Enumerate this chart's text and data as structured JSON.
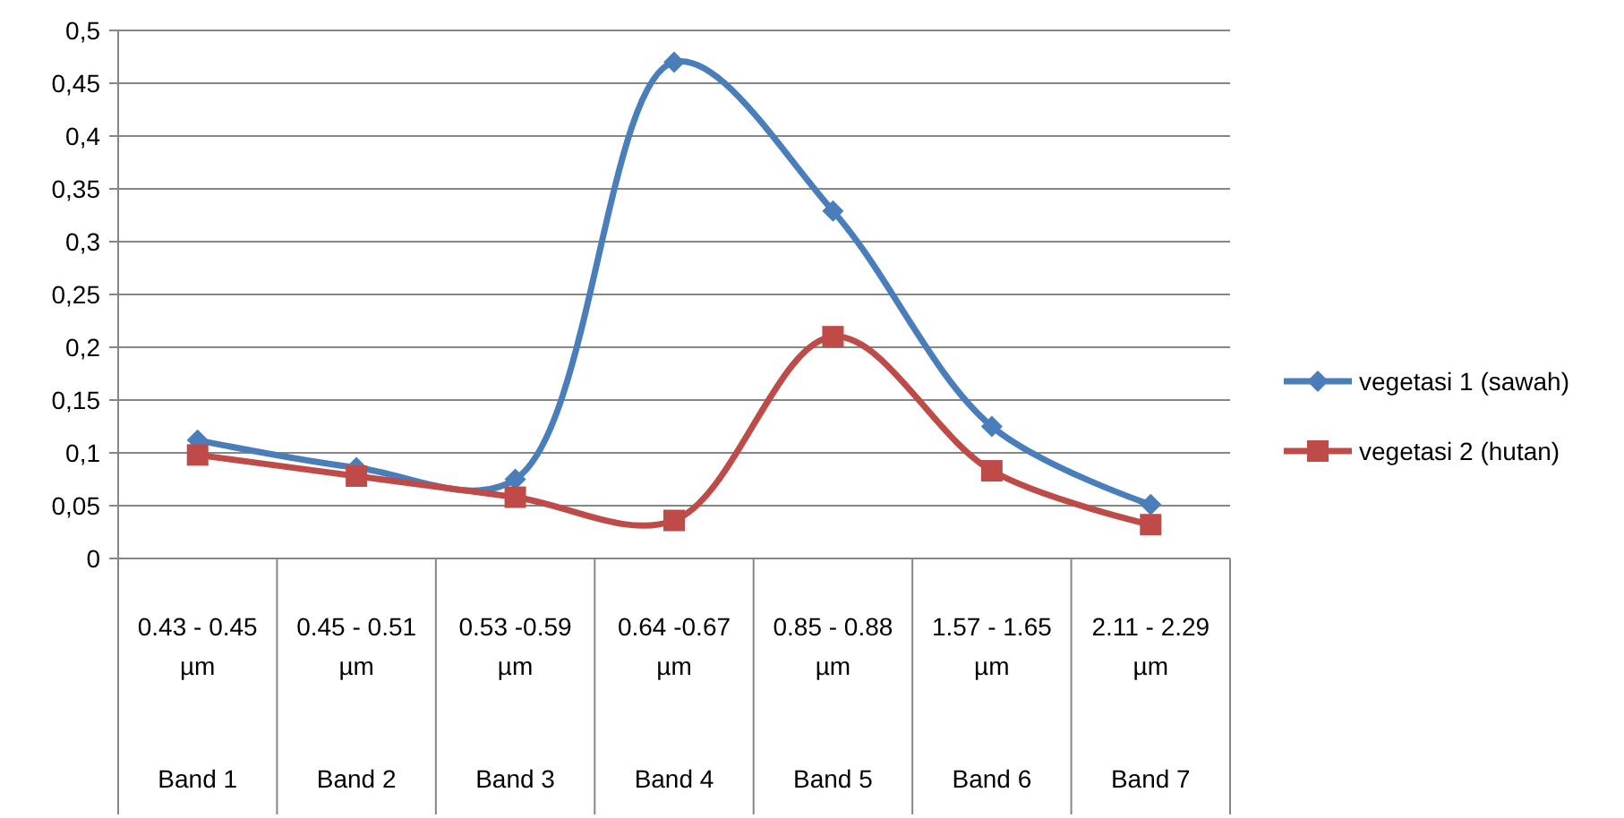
{
  "chart_data": {
    "type": "line",
    "categories": [
      "0.43 - 0.45 µm\nBand 1",
      "0.45 - 0.51 µm\nBand 2",
      "0.53 -0.59 µm\nBand 3",
      "0.64 -0.67 µm\nBand 4",
      "0.85 - 0.88 µm\nBand 5",
      "1.57 - 1.65 µm\nBand 6",
      "2.11 - 2.29 µm\nBand 7"
    ],
    "series": [
      {
        "name": "vegetasi 1 (sawah)",
        "color": "#4a7ebb",
        "marker": "diamond",
        "values": [
          0.112,
          0.086,
          0.075,
          0.47,
          0.329,
          0.125,
          0.051
        ]
      },
      {
        "name": "vegetasi 2 (hutan)",
        "color": "#be4b48",
        "marker": "square",
        "values": [
          0.098,
          0.078,
          0.058,
          0.036,
          0.21,
          0.083,
          0.032
        ]
      }
    ],
    "ylim": [
      0,
      0.5
    ],
    "yticks": [
      {
        "value": 0,
        "label": "0"
      },
      {
        "value": 0.05,
        "label": "0,05"
      },
      {
        "value": 0.1,
        "label": "0,1"
      },
      {
        "value": 0.15,
        "label": "0,15"
      },
      {
        "value": 0.2,
        "label": "0,2"
      },
      {
        "value": 0.25,
        "label": "0,25"
      },
      {
        "value": 0.3,
        "label": "0,3"
      },
      {
        "value": 0.35,
        "label": "0,35"
      },
      {
        "value": 0.4,
        "label": "0,4"
      },
      {
        "value": 0.45,
        "label": "0,45"
      },
      {
        "value": 0.5,
        "label": "0,5"
      }
    ],
    "grid": "y",
    "legend": "right",
    "line_style": "solid"
  }
}
